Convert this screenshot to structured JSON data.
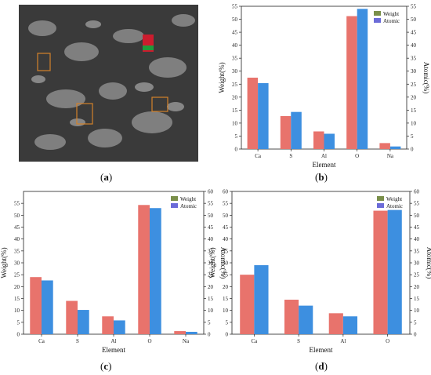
{
  "panels": [
    {
      "id": "a",
      "label": "a"
    },
    {
      "id": "b",
      "label": "b"
    },
    {
      "id": "c",
      "label": "c"
    },
    {
      "id": "d",
      "label": "d"
    }
  ],
  "colors": {
    "weight": "#e8736c",
    "atomic": "#3d8fe0",
    "legend_weight": "#7a8f4a",
    "legend_atomic": "#6b6bd8"
  },
  "chart_data": [
    {
      "panel": "b",
      "type": "bar",
      "categories": [
        "Ca",
        "S",
        "Al",
        "O",
        "Na"
      ],
      "series": [
        {
          "name": "Weight",
          "values": [
            27.5,
            12.7,
            6.8,
            51.2,
            2.3
          ]
        },
        {
          "name": "Atomic",
          "values": [
            25.4,
            14.3,
            5.9,
            54.0,
            1.0
          ]
        }
      ],
      "xlabel": "Element",
      "ylabel": "Weight(%)",
      "ylabel_right": "Atomic(%)",
      "ylim": [
        0,
        55
      ],
      "ylim_right": [
        0,
        55
      ],
      "yticks": [
        0,
        5,
        10,
        15,
        20,
        25,
        30,
        35,
        40,
        45,
        50,
        55
      ],
      "yticks_right": [
        0,
        5,
        10,
        15,
        20,
        25,
        30,
        35,
        40,
        45,
        50,
        55
      ],
      "legend": "top-right",
      "grid": false
    },
    {
      "panel": "c",
      "type": "bar",
      "categories": [
        "Ca",
        "S",
        "Al",
        "O",
        "Na"
      ],
      "series": [
        {
          "name": "Weight",
          "values": [
            24.0,
            14.0,
            7.5,
            54.3,
            1.3
          ]
        },
        {
          "name": "Atomic",
          "values": [
            22.6,
            10.2,
            5.8,
            53.0,
            1.0
          ]
        }
      ],
      "xlabel": "Element",
      "ylabel": "Weight(%)",
      "ylabel_right": "Atomic(%)",
      "ylim": [
        0,
        60
      ],
      "ylim_right": [
        0,
        60
      ],
      "yticks": [
        0,
        5,
        10,
        15,
        20,
        25,
        30,
        35,
        40,
        45,
        50,
        55
      ],
      "yticks_right": [
        0,
        5,
        10,
        15,
        20,
        25,
        30,
        35,
        40,
        45,
        50,
        55,
        60
      ],
      "legend": "top-right",
      "grid": false
    },
    {
      "panel": "d",
      "type": "bar",
      "categories": [
        "Ca",
        "S",
        "Al",
        "O"
      ],
      "series": [
        {
          "name": "Weight",
          "values": [
            25.0,
            14.5,
            8.8,
            51.9
          ]
        },
        {
          "name": "Atomic",
          "values": [
            29.0,
            12.0,
            7.5,
            52.2
          ]
        }
      ],
      "xlabel": "Element",
      "ylabel": "Weight(%)",
      "ylabel_right": "Atomic(%)",
      "ylim": [
        0,
        60
      ],
      "ylim_right": [
        0,
        60
      ],
      "yticks": [
        0,
        5,
        10,
        15,
        20,
        25,
        30,
        35,
        40,
        45,
        50,
        55,
        60
      ],
      "yticks_right": [
        0,
        5,
        10,
        15,
        20,
        25,
        30,
        35,
        40,
        45,
        50,
        55,
        60
      ],
      "legend": "top-right",
      "grid": false
    }
  ]
}
